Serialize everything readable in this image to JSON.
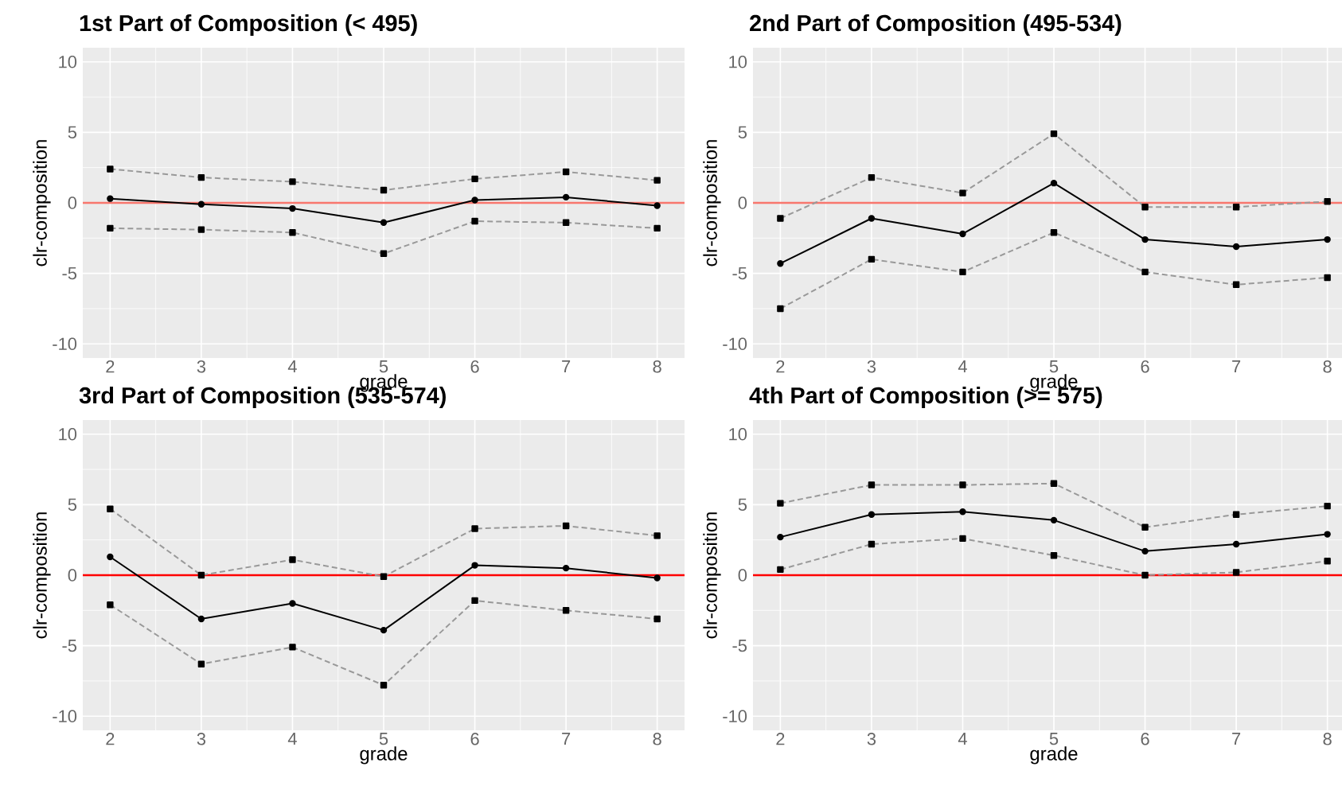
{
  "chart_data": [
    {
      "type": "line",
      "title": "1st Part of Composition (< 495)",
      "xlabel": "grade",
      "ylabel": "clr-composition",
      "x": [
        2,
        3,
        4,
        5,
        6,
        7,
        8
      ],
      "xlim": [
        1.7,
        8.3
      ],
      "ylim": [
        -11,
        11
      ],
      "xticks": [
        2,
        3,
        4,
        5,
        6,
        7,
        8
      ],
      "yticks": [
        -10,
        -5,
        0,
        5,
        10
      ],
      "grid": true,
      "ref_lines": [
        {
          "axis": "y",
          "value": 0,
          "color": "#f8766d"
        }
      ],
      "series": [
        {
          "color": "#999999",
          "line_style": "dashed",
          "marker": "square",
          "values": [
            2.4,
            1.8,
            1.5,
            0.9,
            1.7,
            2.2,
            1.6
          ]
        },
        {
          "color": "#000000",
          "line_style": "solid",
          "marker": "circle",
          "values": [
            0.3,
            -0.1,
            -0.4,
            -1.4,
            0.2,
            0.4,
            -0.2
          ]
        },
        {
          "color": "#999999",
          "line_style": "dashed",
          "marker": "square",
          "values": [
            -1.8,
            -1.9,
            -2.1,
            -3.6,
            -1.3,
            -1.4,
            -1.8
          ]
        }
      ]
    },
    {
      "type": "line",
      "title": "2nd Part of Composition (495-534)",
      "xlabel": "grade",
      "ylabel": "clr-composition",
      "x": [
        2,
        3,
        4,
        5,
        6,
        7,
        8
      ],
      "xlim": [
        1.7,
        8.3
      ],
      "ylim": [
        -11,
        11
      ],
      "xticks": [
        2,
        3,
        4,
        5,
        6,
        7,
        8
      ],
      "yticks": [
        -10,
        -5,
        0,
        5,
        10
      ],
      "grid": true,
      "ref_lines": [
        {
          "axis": "y",
          "value": 0,
          "color": "#f8766d"
        }
      ],
      "series": [
        {
          "color": "#999999",
          "line_style": "dashed",
          "marker": "square",
          "values": [
            -1.1,
            1.8,
            0.7,
            4.9,
            -0.3,
            -0.3,
            0.1
          ]
        },
        {
          "color": "#000000",
          "line_style": "solid",
          "marker": "circle",
          "values": [
            -4.3,
            -1.1,
            -2.2,
            1.4,
            -2.6,
            -3.1,
            -2.6
          ]
        },
        {
          "color": "#999999",
          "line_style": "dashed",
          "marker": "square",
          "values": [
            -7.5,
            -4.0,
            -4.9,
            -2.1,
            -4.9,
            -5.8,
            -5.3
          ]
        }
      ]
    },
    {
      "type": "line",
      "title": "3rd Part of Composition (535-574)",
      "xlabel": "grade",
      "ylabel": "clr-composition",
      "x": [
        2,
        3,
        4,
        5,
        6,
        7,
        8
      ],
      "xlim": [
        1.7,
        8.3
      ],
      "ylim": [
        -11,
        11
      ],
      "xticks": [
        2,
        3,
        4,
        5,
        6,
        7,
        8
      ],
      "yticks": [
        -10,
        -5,
        0,
        5,
        10
      ],
      "grid": true,
      "ref_lines": [
        {
          "axis": "y",
          "value": 0,
          "color": "#ff0000"
        }
      ],
      "series": [
        {
          "color": "#999999",
          "line_style": "dashed",
          "marker": "square",
          "values": [
            4.7,
            0.0,
            1.1,
            -0.1,
            3.3,
            3.5,
            2.8
          ]
        },
        {
          "color": "#000000",
          "line_style": "solid",
          "marker": "circle",
          "values": [
            1.3,
            -3.1,
            -2.0,
            -3.9,
            0.7,
            0.5,
            -0.2
          ]
        },
        {
          "color": "#999999",
          "line_style": "dashed",
          "marker": "square",
          "values": [
            -2.1,
            -6.3,
            -5.1,
            -7.8,
            -1.8,
            -2.5,
            -3.1
          ]
        }
      ]
    },
    {
      "type": "line",
      "title": "4th Part of Composition (>= 575)",
      "xlabel": "grade",
      "ylabel": "clr-composition",
      "x": [
        2,
        3,
        4,
        5,
        6,
        7,
        8
      ],
      "xlim": [
        1.7,
        8.3
      ],
      "ylim": [
        -11,
        11
      ],
      "xticks": [
        2,
        3,
        4,
        5,
        6,
        7,
        8
      ],
      "yticks": [
        -10,
        -5,
        0,
        5,
        10
      ],
      "grid": true,
      "ref_lines": [
        {
          "axis": "y",
          "value": 0,
          "color": "#ff0000"
        }
      ],
      "series": [
        {
          "color": "#999999",
          "line_style": "dashed",
          "marker": "square",
          "values": [
            5.1,
            6.4,
            6.4,
            6.5,
            3.4,
            4.3,
            4.9
          ]
        },
        {
          "color": "#000000",
          "line_style": "solid",
          "marker": "circle",
          "values": [
            2.7,
            4.3,
            4.5,
            3.9,
            1.7,
            2.2,
            2.9
          ]
        },
        {
          "color": "#999999",
          "line_style": "dashed",
          "marker": "square",
          "values": [
            0.4,
            2.2,
            2.6,
            1.4,
            0.0,
            0.2,
            1.0
          ]
        }
      ]
    }
  ]
}
